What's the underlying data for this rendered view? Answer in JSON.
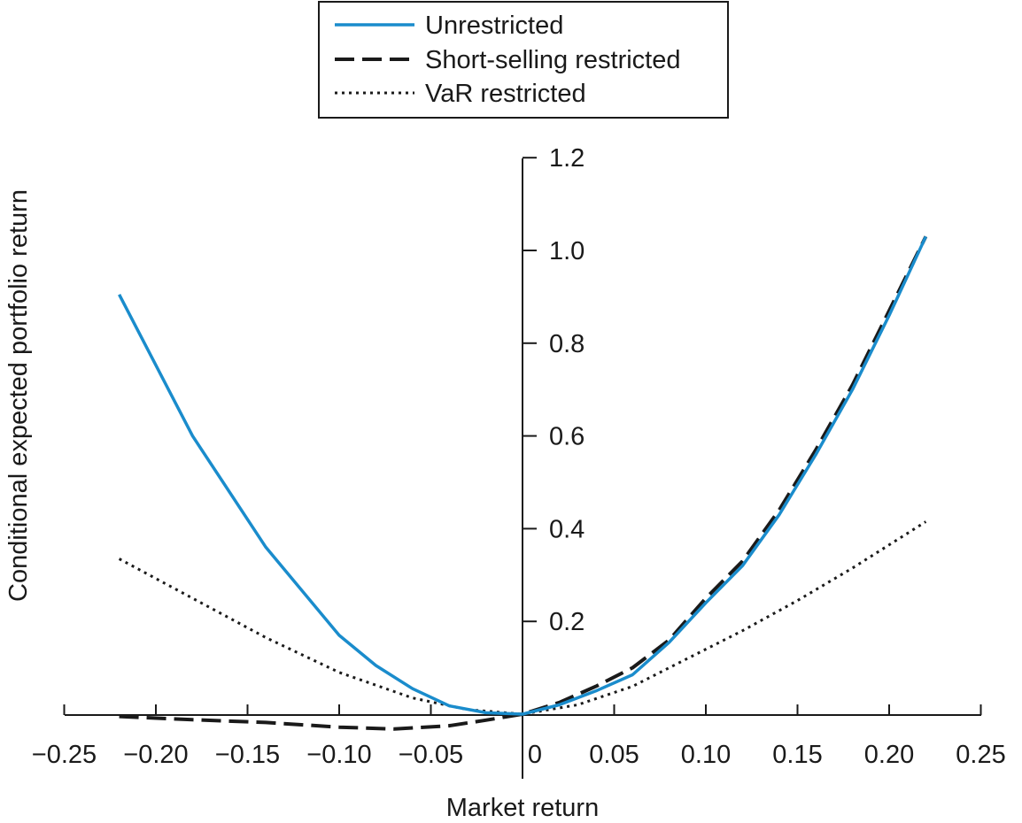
{
  "chart_data": {
    "type": "line",
    "title": "",
    "xlabel": "Market return",
    "ylabel": "Conditional expected portfolio return",
    "xlim": [
      -0.25,
      0.25
    ],
    "ylim": [
      0,
      1.2
    ],
    "grid": false,
    "legend_position": "top-center",
    "x_ticks": [
      {
        "value": -0.25,
        "label": "−0.25"
      },
      {
        "value": -0.2,
        "label": "−0.20"
      },
      {
        "value": -0.15,
        "label": "−0.15"
      },
      {
        "value": -0.1,
        "label": "−0.10"
      },
      {
        "value": -0.05,
        "label": "−0.05"
      },
      {
        "value": 0,
        "label": "0"
      },
      {
        "value": 0.05,
        "label": "0.05"
      },
      {
        "value": 0.1,
        "label": "0.10"
      },
      {
        "value": 0.15,
        "label": "0.15"
      },
      {
        "value": 0.2,
        "label": "0.20"
      },
      {
        "value": 0.25,
        "label": "0.25"
      }
    ],
    "y_ticks": [
      {
        "value": 0.2,
        "label": "0.2"
      },
      {
        "value": 0.4,
        "label": "0.4"
      },
      {
        "value": 0.6,
        "label": "0.6"
      },
      {
        "value": 0.8,
        "label": "0.8"
      },
      {
        "value": 1.0,
        "label": "1.0"
      },
      {
        "value": 1.2,
        "label": "1.2"
      }
    ],
    "series": [
      {
        "name": "Unrestricted",
        "color": "#1a8ccc",
        "style": "solid",
        "x": [
          -0.22,
          -0.18,
          -0.14,
          -0.1,
          -0.08,
          -0.06,
          -0.04,
          -0.02,
          0,
          0.02,
          0.04,
          0.06,
          0.08,
          0.1,
          0.12,
          0.14,
          0.16,
          0.18,
          0.2,
          0.22
        ],
        "y": [
          0.905,
          0.6,
          0.36,
          0.17,
          0.105,
          0.055,
          0.018,
          0.003,
          0,
          0.02,
          0.05,
          0.085,
          0.155,
          0.24,
          0.32,
          0.43,
          0.56,
          0.7,
          0.86,
          1.03
        ]
      },
      {
        "name": "Short-selling restricted",
        "color": "#1a1a1a",
        "style": "dashed",
        "x": [
          -0.22,
          -0.18,
          -0.14,
          -0.1,
          -0.07,
          -0.04,
          -0.02,
          0,
          0.02,
          0.04,
          0.06,
          0.08,
          0.1,
          0.12,
          0.14,
          0.16,
          0.18,
          0.2,
          0.22
        ],
        "y": [
          -0.005,
          -0.012,
          -0.018,
          -0.028,
          -0.032,
          -0.025,
          -0.013,
          0,
          0.025,
          0.06,
          0.1,
          0.16,
          0.25,
          0.33,
          0.44,
          0.57,
          0.71,
          0.87,
          1.03
        ]
      },
      {
        "name": "VaR restricted",
        "color": "#1a1a1a",
        "style": "dotted",
        "x": [
          -0.22,
          -0.18,
          -0.14,
          -0.1,
          -0.06,
          -0.03,
          0,
          0.03,
          0.06,
          0.09,
          0.12,
          0.15,
          0.18,
          0.22
        ],
        "y": [
          0.335,
          0.25,
          0.165,
          0.09,
          0.035,
          0.01,
          0,
          0.02,
          0.06,
          0.12,
          0.18,
          0.245,
          0.315,
          0.415
        ]
      }
    ]
  }
}
